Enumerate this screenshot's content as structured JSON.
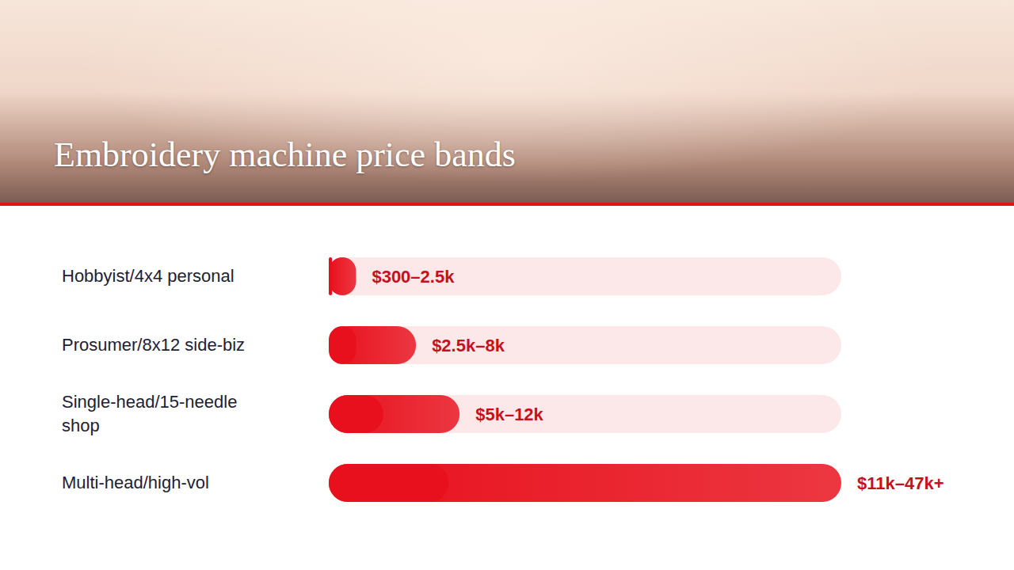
{
  "chart_data": {
    "type": "bar",
    "title": "Embroidery machine price bands",
    "orientation": "horizontal",
    "categories": [
      "Hobbyist/4x4 personal",
      "Prosumer/8x12 side-biz",
      "Single-head/15-needle shop",
      "Multi-head/high-vol"
    ],
    "values": [
      2.5,
      8,
      12,
      47
    ],
    "low": [
      0.3,
      2.5,
      5,
      11
    ],
    "value_labels": [
      "$300–2.5k",
      "$2.5k–8k",
      "$5k–12k",
      "$11k–47k+"
    ],
    "xlim": [
      0,
      47
    ],
    "tick_labels": false,
    "data_labels": true,
    "grid": false,
    "color": "#e8101c"
  }
}
